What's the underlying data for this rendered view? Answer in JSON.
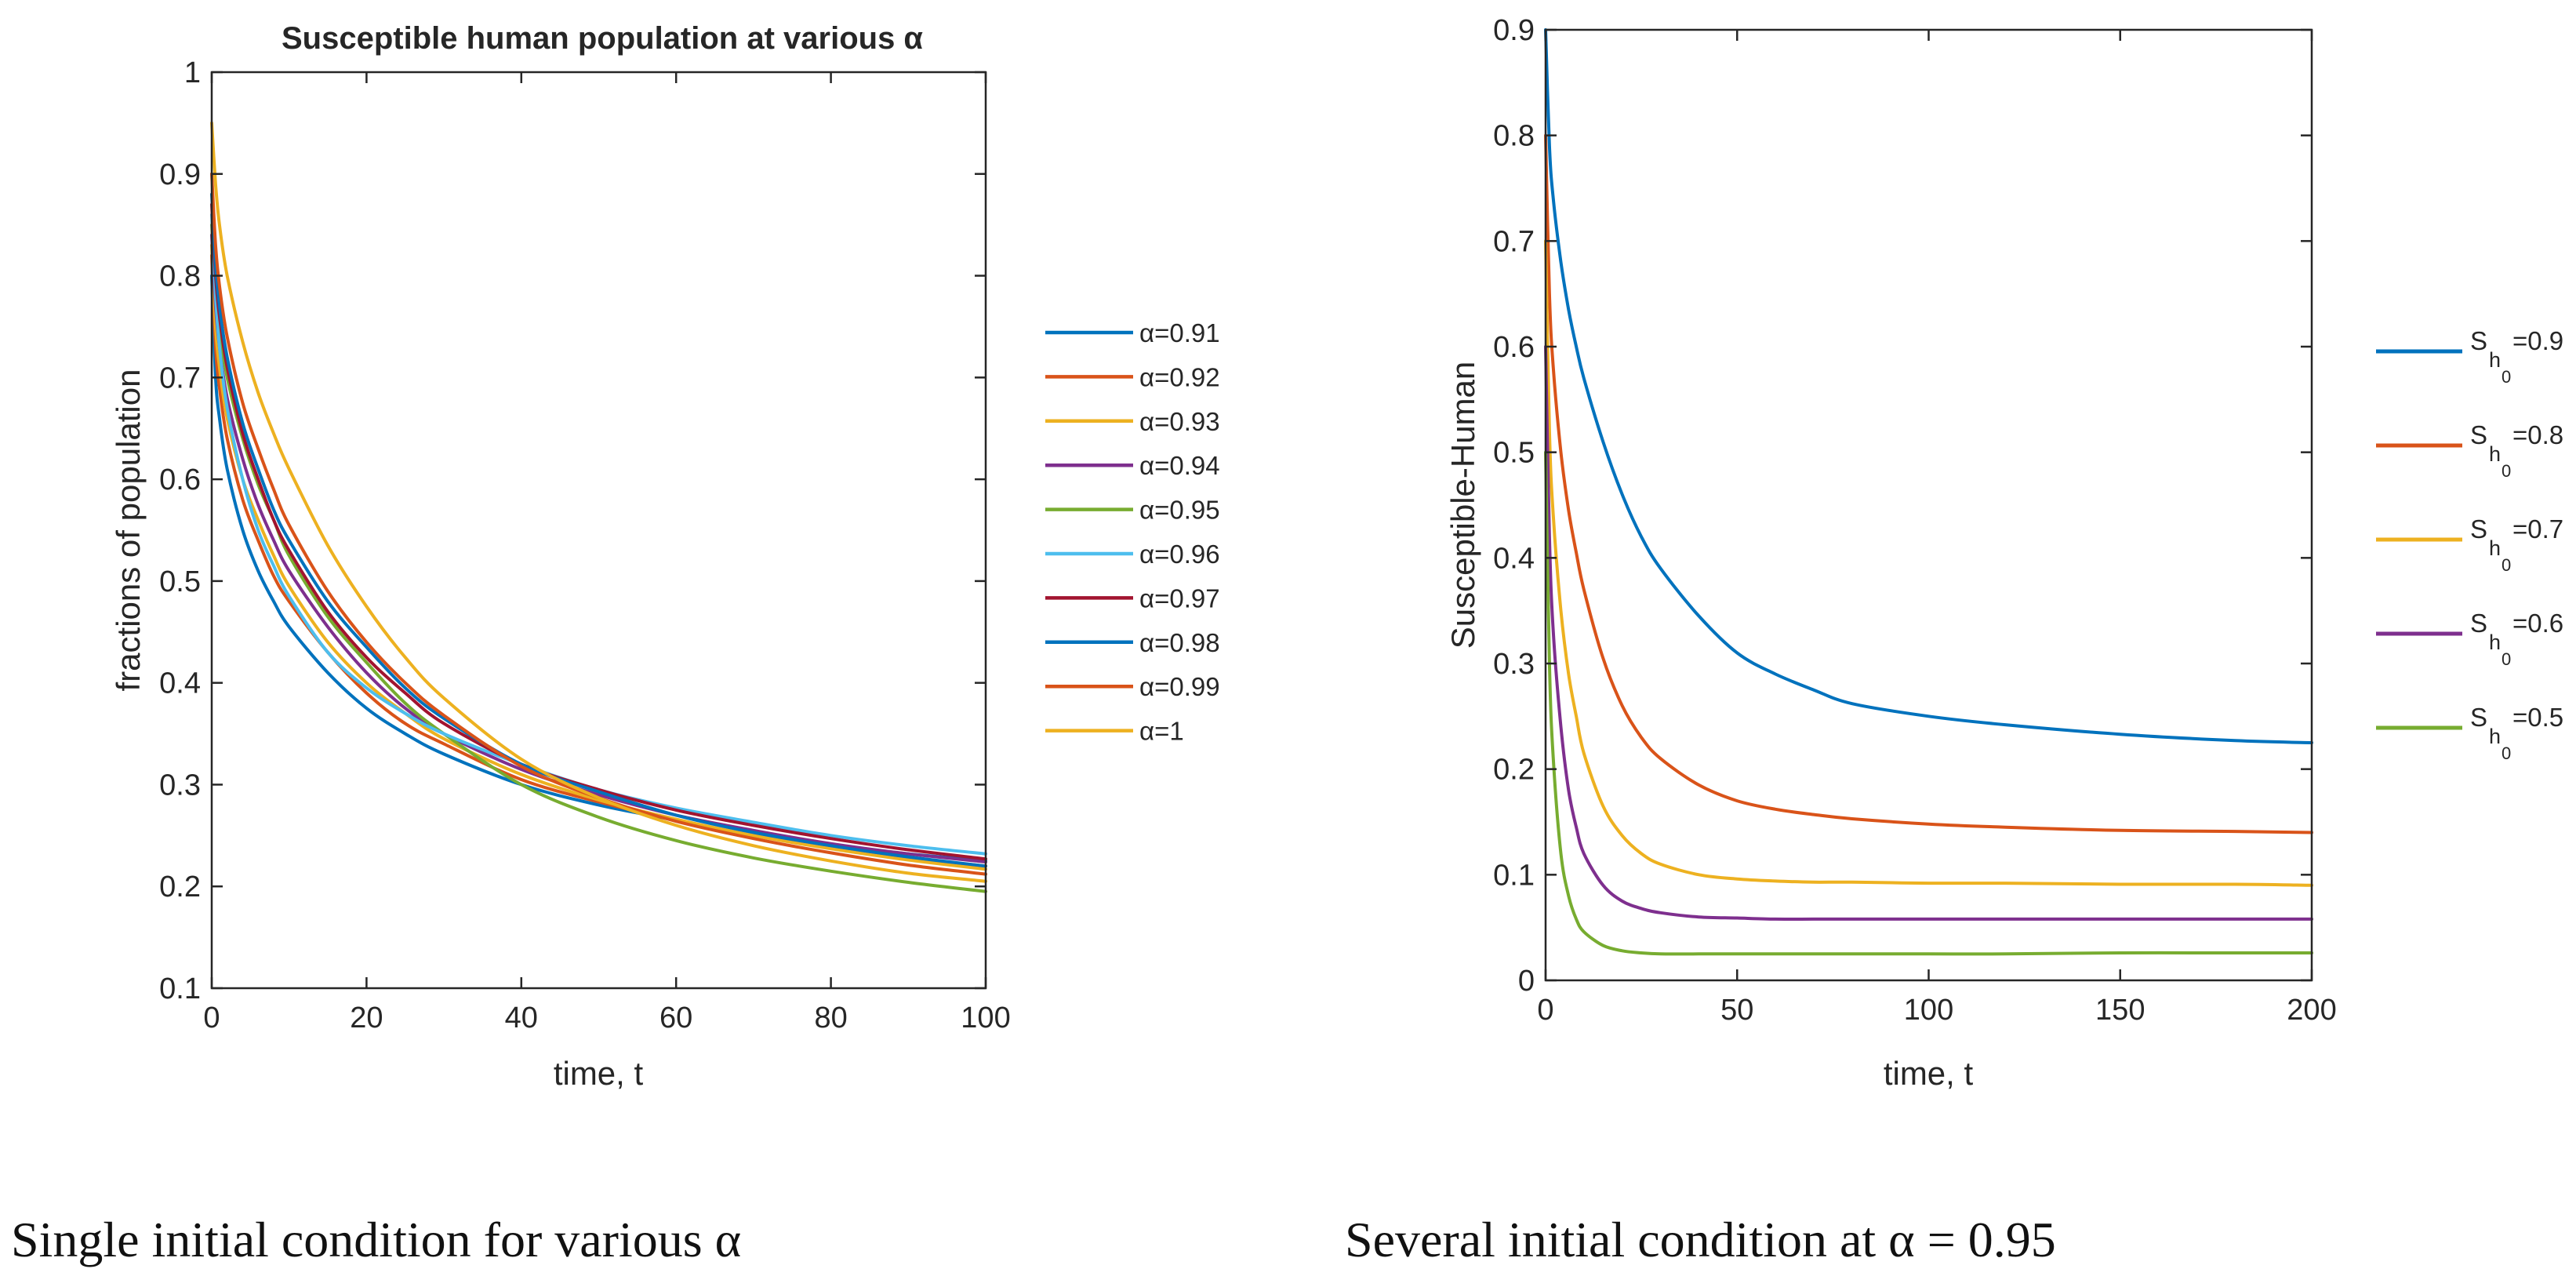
{
  "chart_data": [
    {
      "type": "line",
      "title": "Susceptible human population at various α",
      "xlabel": "time, t",
      "ylabel": "fractions of population",
      "xlim": [
        0,
        100
      ],
      "ylim": [
        0.1,
        1
      ],
      "xticks": [
        0,
        20,
        40,
        60,
        80,
        100
      ],
      "yticks": [
        0.1,
        0.2,
        0.3,
        0.4,
        0.5,
        0.6,
        0.7,
        0.8,
        0.9,
        1
      ],
      "ytick_labels": [
        "0.1",
        "0.2",
        "0.3",
        "0.4",
        "0.5",
        "0.6",
        "0.7",
        "0.8",
        "0.9",
        "1"
      ],
      "legend_position": "outside-right",
      "x": [
        0,
        0.5,
        1,
        2,
        4,
        6,
        8,
        10,
        15,
        20,
        25,
        30,
        40,
        50,
        60,
        70,
        80,
        90,
        100
      ],
      "series": [
        {
          "name": "α=0.91",
          "color": "#0072BD",
          "values": [
            0.8,
            0.7,
            0.66,
            0.61,
            0.55,
            0.51,
            0.48,
            0.455,
            0.41,
            0.375,
            0.35,
            0.33,
            0.3,
            0.28,
            0.265,
            0.25,
            0.24,
            0.232,
            0.225
          ]
        },
        {
          "name": "α=0.92",
          "color": "#D95319",
          "values": [
            0.82,
            0.73,
            0.69,
            0.64,
            0.58,
            0.54,
            0.505,
            0.48,
            0.43,
            0.39,
            0.36,
            0.34,
            0.305,
            0.283,
            0.265,
            0.25,
            0.238,
            0.228,
            0.22
          ]
        },
        {
          "name": "α=0.93",
          "color": "#EDB120",
          "values": [
            0.83,
            0.75,
            0.71,
            0.66,
            0.6,
            0.56,
            0.525,
            0.495,
            0.44,
            0.4,
            0.37,
            0.345,
            0.31,
            0.285,
            0.266,
            0.25,
            0.237,
            0.226,
            0.217
          ]
        },
        {
          "name": "α=0.94",
          "color": "#7E2F8E",
          "values": [
            0.84,
            0.77,
            0.73,
            0.68,
            0.62,
            0.575,
            0.54,
            0.51,
            0.455,
            0.41,
            0.375,
            0.35,
            0.315,
            0.29,
            0.27,
            0.255,
            0.242,
            0.232,
            0.224
          ]
        },
        {
          "name": "α=0.95",
          "color": "#77AC30",
          "values": [
            0.85,
            0.79,
            0.75,
            0.7,
            0.64,
            0.595,
            0.56,
            0.525,
            0.465,
            0.42,
            0.38,
            0.35,
            0.3,
            0.268,
            0.245,
            0.228,
            0.215,
            0.204,
            0.195
          ]
        },
        {
          "name": "α=0.96",
          "color": "#4DBEEE",
          "values": [
            0.86,
            0.78,
            0.73,
            0.67,
            0.6,
            0.55,
            0.515,
            0.485,
            0.43,
            0.395,
            0.37,
            0.35,
            0.32,
            0.295,
            0.277,
            0.263,
            0.25,
            0.24,
            0.232
          ]
        },
        {
          "name": "α=0.97",
          "color": "#A2142F",
          "values": [
            0.87,
            0.8,
            0.76,
            0.71,
            0.645,
            0.6,
            0.56,
            0.53,
            0.47,
            0.425,
            0.39,
            0.36,
            0.32,
            0.295,
            0.275,
            0.26,
            0.247,
            0.236,
            0.227
          ]
        },
        {
          "name": "α=0.98",
          "color": "#0072BD",
          "values": [
            0.88,
            0.81,
            0.77,
            0.72,
            0.655,
            0.61,
            0.57,
            0.54,
            0.48,
            0.435,
            0.395,
            0.365,
            0.32,
            0.293,
            0.27,
            0.253,
            0.24,
            0.229,
            0.22
          ]
        },
        {
          "name": "α=0.99",
          "color": "#D95319",
          "values": [
            0.9,
            0.83,
            0.79,
            0.74,
            0.675,
            0.63,
            0.59,
            0.555,
            0.49,
            0.44,
            0.4,
            0.368,
            0.318,
            0.287,
            0.264,
            0.247,
            0.233,
            0.221,
            0.212
          ]
        },
        {
          "name": "α=1",
          "color": "#EDB120",
          "values": [
            0.95,
            0.89,
            0.85,
            0.8,
            0.735,
            0.685,
            0.645,
            0.61,
            0.535,
            0.475,
            0.425,
            0.385,
            0.325,
            0.287,
            0.26,
            0.24,
            0.225,
            0.213,
            0.205
          ]
        }
      ]
    },
    {
      "type": "line",
      "title": "",
      "xlabel": "time, t",
      "ylabel": "Susceptible-Human",
      "xlim": [
        0,
        200
      ],
      "ylim": [
        0,
        0.9
      ],
      "xticks": [
        0,
        50,
        100,
        150,
        200
      ],
      "yticks": [
        0,
        0.1,
        0.2,
        0.3,
        0.4,
        0.5,
        0.6,
        0.7,
        0.8,
        0.9
      ],
      "ytick_labels": [
        "0",
        "0.1",
        "0.2",
        "0.3",
        "0.4",
        "0.5",
        "0.6",
        "0.7",
        "0.8",
        "0.9"
      ],
      "legend_position": "outside-right",
      "x": [
        0,
        1,
        2,
        4,
        6,
        8,
        10,
        15,
        20,
        25,
        30,
        40,
        50,
        60,
        70,
        80,
        100,
        120,
        150,
        180,
        200
      ],
      "series": [
        {
          "name": "S",
          "sub": "h",
          "subsub": "0",
          "suffix": "=0.9",
          "color": "#0072BD",
          "values": [
            0.9,
            0.79,
            0.74,
            0.68,
            0.635,
            0.6,
            0.57,
            0.51,
            0.46,
            0.42,
            0.39,
            0.345,
            0.31,
            0.29,
            0.275,
            0.262,
            0.25,
            0.242,
            0.233,
            0.227,
            0.225
          ]
        },
        {
          "name": "S",
          "sub": "h",
          "subsub": "0",
          "suffix": "=0.8",
          "color": "#D95319",
          "values": [
            0.8,
            0.65,
            0.58,
            0.5,
            0.445,
            0.405,
            0.37,
            0.305,
            0.26,
            0.23,
            0.21,
            0.185,
            0.17,
            0.162,
            0.157,
            0.153,
            0.148,
            0.145,
            0.142,
            0.141,
            0.14
          ]
        },
        {
          "name": "S",
          "sub": "h",
          "subsub": "0",
          "suffix": "=0.7",
          "color": "#EDB120",
          "values": [
            0.7,
            0.52,
            0.44,
            0.35,
            0.29,
            0.25,
            0.215,
            0.165,
            0.137,
            0.12,
            0.11,
            0.1,
            0.096,
            0.094,
            0.093,
            0.093,
            0.092,
            0.092,
            0.091,
            0.091,
            0.09
          ]
        },
        {
          "name": "S",
          "sub": "h",
          "subsub": "0",
          "suffix": "=0.6",
          "color": "#7E2F8E",
          "values": [
            0.6,
            0.42,
            0.33,
            0.24,
            0.18,
            0.145,
            0.12,
            0.09,
            0.075,
            0.068,
            0.064,
            0.06,
            0.059,
            0.058,
            0.058,
            0.058,
            0.058,
            0.058,
            0.058,
            0.058,
            0.058
          ]
        },
        {
          "name": "S",
          "sub": "h",
          "subsub": "0",
          "suffix": "=0.5",
          "color": "#77AC30",
          "values": [
            0.5,
            0.3,
            0.21,
            0.12,
            0.08,
            0.058,
            0.046,
            0.033,
            0.028,
            0.026,
            0.025,
            0.025,
            0.025,
            0.025,
            0.025,
            0.025,
            0.025,
            0.025,
            0.026,
            0.026,
            0.026
          ]
        }
      ]
    }
  ],
  "captions": {
    "left": "Single initial condition for various α",
    "right": "Several initial condition at α = 0.95"
  }
}
